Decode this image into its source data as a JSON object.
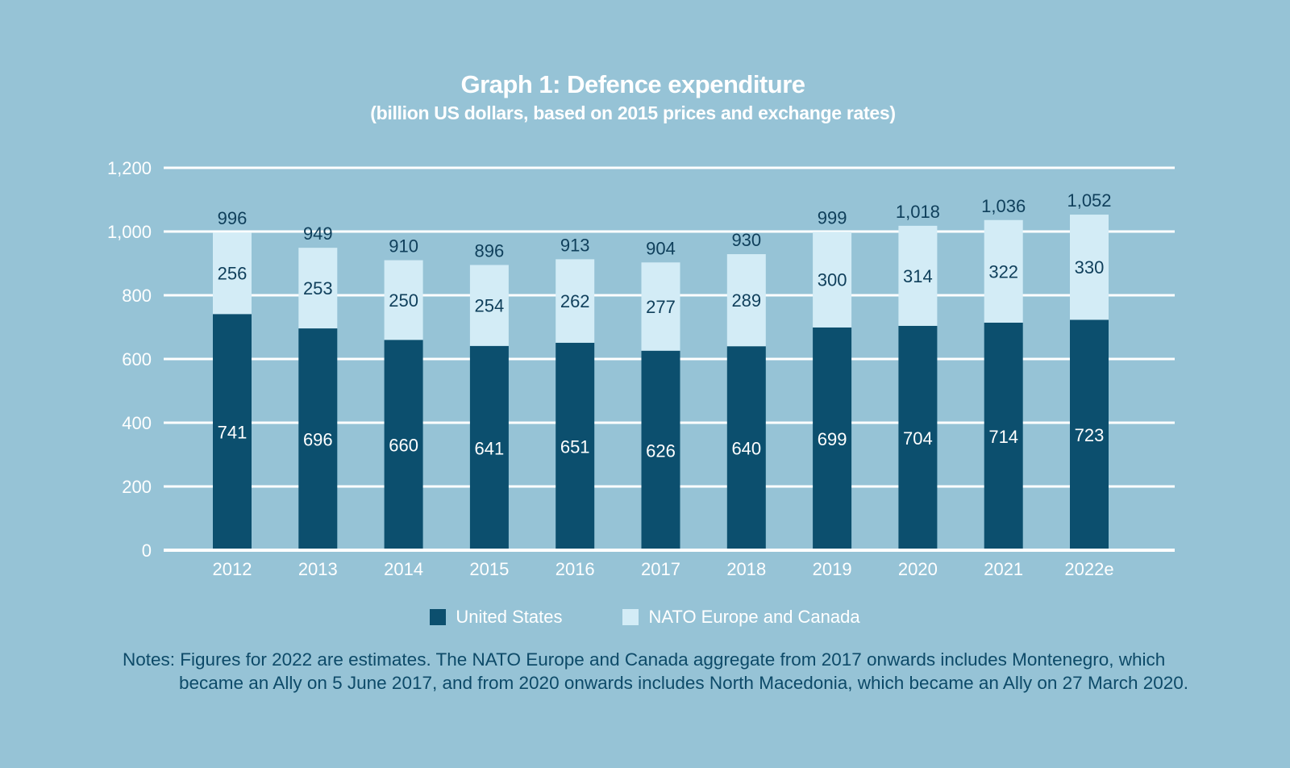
{
  "header": {
    "title": "Graph 1: Defence expenditure",
    "subtitle": "(billion US dollars, based on 2015 prices and exchange rates)"
  },
  "legend": {
    "items": [
      {
        "label": "United States",
        "color": "#0c4f6e"
      },
      {
        "label": "NATO Europe and Canada",
        "color": "#d3ecf6"
      }
    ]
  },
  "notes": {
    "label": "Notes:",
    "text": "Figures for 2022 are estimates. The NATO Europe and Canada aggregate from 2017 onwards includes Montenegro, which became an Ally on 5 June 2017, and from 2020 onwards includes North Macedonia, which became an Ally on 27 March 2020."
  },
  "colors": {
    "background": "#96c3d6",
    "gridline": "#ffffff",
    "axis_text": "#ffffff",
    "dark_series": "#0c4f6e",
    "light_series": "#d3ecf6",
    "value_text_dark": "#0f3f5b",
    "value_text_light": "#ffffff"
  },
  "chart_data": {
    "type": "bar",
    "stacked": true,
    "title": "Graph 1: Defence expenditure",
    "subtitle": "(billion US dollars, based on 2015 prices and exchange rates)",
    "categories": [
      "2012",
      "2013",
      "2014",
      "2015",
      "2016",
      "2017",
      "2018",
      "2019",
      "2020",
      "2021",
      "2022e"
    ],
    "series": [
      {
        "name": "United States",
        "color": "#0c4f6e",
        "label_color": "#ffffff",
        "values": [
          741,
          696,
          660,
          641,
          651,
          626,
          640,
          699,
          704,
          714,
          723
        ]
      },
      {
        "name": "NATO Europe and Canada",
        "color": "#d3ecf6",
        "label_color": "#0f3f5b",
        "values": [
          256,
          253,
          250,
          254,
          262,
          277,
          289,
          300,
          314,
          322,
          330
        ]
      }
    ],
    "totals": [
      996,
      949,
      910,
      896,
      913,
      904,
      930,
      999,
      1018,
      1036,
      1052
    ],
    "totals_formatted": [
      "996",
      "949",
      "910",
      "896",
      "913",
      "904",
      "930",
      "999",
      "1,018",
      "1,036",
      "1,052"
    ],
    "xlabel": "",
    "ylabel": "",
    "ylim": [
      0,
      1200
    ],
    "ytick_interval": 200,
    "yticks": [
      {
        "value": 0,
        "label": "0"
      },
      {
        "value": 200,
        "label": "200"
      },
      {
        "value": 400,
        "label": "400"
      },
      {
        "value": 600,
        "label": "600"
      },
      {
        "value": 800,
        "label": "800"
      },
      {
        "value": 1000,
        "label": "1,000"
      },
      {
        "value": 1200,
        "label": "1,200"
      }
    ],
    "grid": true,
    "legend_position": "bottom"
  }
}
